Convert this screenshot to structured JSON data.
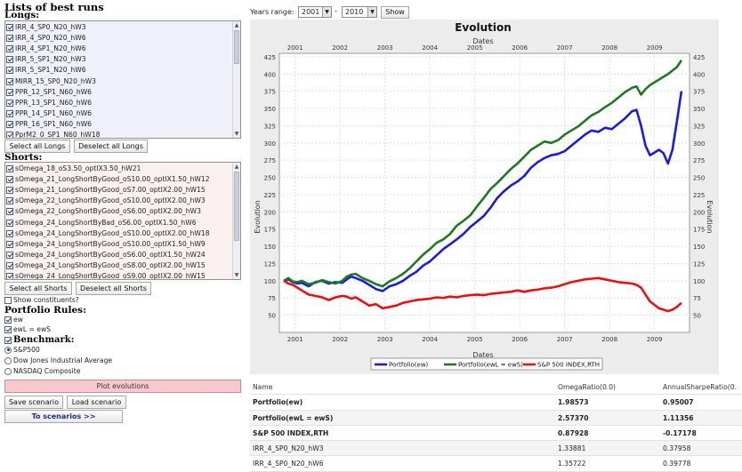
{
  "left": {
    "heading": "Lists of best runs",
    "longs_label": "Longs:",
    "longs": [
      {
        "label": "IRR_4_SP0_N20_hW3",
        "checked": true
      },
      {
        "label": "IRR_4_SP0_N20_hW6",
        "checked": true
      },
      {
        "label": "IRR_4_SP1_N20_hW6",
        "checked": true
      },
      {
        "label": "IRR_5_SP1_N20_hW3",
        "checked": true
      },
      {
        "label": "IRR_5_SP1_N20_hW6",
        "checked": true
      },
      {
        "label": "MIRR_15_SP0_N20_hW3",
        "checked": true
      },
      {
        "label": "PPR_12_SP1_N60_hW6",
        "checked": true
      },
      {
        "label": "PPR_13_SP1_N60_hW6",
        "checked": true
      },
      {
        "label": "PPR_14_SP1_N60_hW6",
        "checked": true
      },
      {
        "label": "PPR_16_SP1_N60_hW6",
        "checked": true
      },
      {
        "label": "PprM2_0_SP1_N60_hW18",
        "checked": true
      }
    ],
    "select_all_longs": "Select all Longs",
    "deselect_all_longs": "Deselect all Longs",
    "shorts_label": "Shorts:",
    "shorts": [
      {
        "label": "sOmega_18_oS3.50_optIX3.50_hW21",
        "checked": true
      },
      {
        "label": "sOmega_21_LongShortByGood_oS10.00_optIX1.50_hW12",
        "checked": true
      },
      {
        "label": "sOmega_21_LongShortByGood_oS7.00_optIX2.00_hW15",
        "checked": true
      },
      {
        "label": "sOmega_22_LongShortByGood_oS10.00_optIX2.00_hW3",
        "checked": true
      },
      {
        "label": "sOmega_22_LongShortByGood_oS6.00_optIX2.00_hW3",
        "checked": true
      },
      {
        "label": "sOmega_24_LongShortByBad_oS6.00_optIX1.50_hW6",
        "checked": true
      },
      {
        "label": "sOmega_24_LongShortByGood_oS10.00_optIX2.00_hW18",
        "checked": true
      },
      {
        "label": "sOmega_24_LongShortByGood_oS10.00_optIX1.50_hW9",
        "checked": true
      },
      {
        "label": "sOmega_24_LongShortByGood_oS6.00_optIX1.50_hW24",
        "checked": true
      },
      {
        "label": "sOmega_24_LongShortByGood_oS8.00_optIX2.00_hW15",
        "checked": true
      },
      {
        "label": "sOmega_24_LongShortByGood_oS9.00_optIX2.00_hW15",
        "checked": true
      }
    ],
    "select_all_shorts": "Select all Shorts",
    "deselect_all_shorts": "Deselect all Shorts",
    "show_constituents": "Show constituents?",
    "portfolio_rules_label": "Portfolio Rules:",
    "rule_ew": "ew",
    "rule_ewl": "ewL = ewS",
    "benchmark_label": "Benchmark:",
    "benchmarks": [
      {
        "label": "S&P500",
        "selected": true
      },
      {
        "label": "Dow Jones Industrial Average",
        "selected": false
      },
      {
        "label": "NASDAQ Composite",
        "selected": false
      }
    ],
    "plot_evolutions": "Plot evolutions",
    "save_scenario": "Save scenario",
    "load_scenario": "Load scenario",
    "to_scenarios": "To scenarios >>"
  },
  "toolbar": {
    "years_range_label": "Years range:",
    "year_from": "2001",
    "dash": "-",
    "year_to": "2010",
    "show_button": "Show"
  },
  "table": {
    "headers": [
      "Name",
      "OmegaRatio(0.0)",
      "AnnualSharpeRatio(0."
    ],
    "rows": [
      {
        "name": "Portfolio(ew)",
        "omega": "1.98573",
        "sharpe": "0.95007",
        "bold": true
      },
      {
        "name": "Portfolio(ewL = ewS)",
        "omega": "2.57370",
        "sharpe": "1.11356",
        "bold": true
      },
      {
        "name": "S&P 500 INDEX,RTH",
        "omega": "0.87928",
        "sharpe": "-0.17178",
        "bold": true
      },
      {
        "name": "IRR_4_SP0_N20_hW3",
        "omega": "1.33881",
        "sharpe": "0.37958",
        "bold": false
      },
      {
        "name": "IRR_4_SP0_N20_hW6",
        "omega": "1.35722",
        "sharpe": "0.39778",
        "bold": false
      }
    ]
  },
  "chart_data": {
    "type": "line",
    "title": "Evolution",
    "top_xlabel": "Dates",
    "xlabel": "Dates",
    "ylabel": "Evolution",
    "ylim": [
      25,
      430
    ],
    "xlim": [
      2000.65,
      2009.78
    ],
    "yticks": [
      50,
      75,
      100,
      125,
      150,
      175,
      200,
      225,
      250,
      275,
      300,
      325,
      350,
      375,
      400,
      425
    ],
    "xticks": [
      "2001",
      "2002",
      "2003",
      "2004",
      "2005",
      "2006",
      "2007",
      "2008",
      "2009"
    ],
    "grid": true,
    "legend_position": "bottom",
    "colors": {
      "ew": "#1a1ae6",
      "ewl": "#1e7a1e",
      "spx": "#e81010",
      "plot_bg": "#ffffff",
      "frame_bg": "#ececec"
    },
    "series": [
      {
        "name": "Portfolio(ew)",
        "color": "#1a1ae6",
        "x": [
          2000.75,
          2000.85,
          2000.95,
          2001.05,
          2001.15,
          2001.3,
          2001.45,
          2001.6,
          2001.75,
          2001.9,
          2002.05,
          2002.15,
          2002.25,
          2002.35,
          2002.5,
          2002.65,
          2002.8,
          2002.95,
          2003.1,
          2003.25,
          2003.4,
          2003.55,
          2003.7,
          2003.85,
          2004.0,
          2004.15,
          2004.3,
          2004.45,
          2004.6,
          2004.75,
          2004.9,
          2005.05,
          2005.2,
          2005.35,
          2005.5,
          2005.65,
          2005.8,
          2005.95,
          2006.1,
          2006.25,
          2006.4,
          2006.55,
          2006.7,
          2006.85,
          2007.0,
          2007.15,
          2007.3,
          2007.45,
          2007.6,
          2007.75,
          2007.9,
          2008.05,
          2008.2,
          2008.35,
          2008.5,
          2008.6,
          2008.7,
          2008.8,
          2008.9,
          2009.0,
          2009.1,
          2009.2,
          2009.3,
          2009.4,
          2009.5,
          2009.6
        ],
        "values": [
          100,
          102,
          98,
          96,
          97,
          92,
          98,
          100,
          96,
          98,
          97,
          102,
          106,
          104,
          100,
          94,
          88,
          85,
          92,
          95,
          100,
          107,
          113,
          122,
          128,
          137,
          146,
          153,
          160,
          168,
          178,
          186,
          194,
          206,
          220,
          230,
          238,
          244,
          252,
          264,
          272,
          278,
          282,
          284,
          288,
          296,
          304,
          312,
          318,
          316,
          322,
          320,
          328,
          336,
          346,
          348,
          325,
          296,
          282,
          286,
          290,
          285,
          270,
          290,
          332,
          375
        ]
      },
      {
        "name": "Portfolio(ewL = ewS)",
        "color": "#1e7a1e",
        "x": [
          2000.75,
          2000.85,
          2000.95,
          2001.05,
          2001.15,
          2001.3,
          2001.45,
          2001.6,
          2001.75,
          2001.9,
          2002.05,
          2002.15,
          2002.25,
          2002.35,
          2002.5,
          2002.65,
          2002.8,
          2002.95,
          2003.1,
          2003.25,
          2003.4,
          2003.55,
          2003.7,
          2003.85,
          2004.0,
          2004.15,
          2004.3,
          2004.45,
          2004.6,
          2004.75,
          2004.9,
          2005.05,
          2005.2,
          2005.35,
          2005.5,
          2005.65,
          2005.8,
          2005.95,
          2006.1,
          2006.25,
          2006.4,
          2006.55,
          2006.7,
          2006.85,
          2007.0,
          2007.15,
          2007.3,
          2007.45,
          2007.6,
          2007.75,
          2007.9,
          2008.05,
          2008.2,
          2008.35,
          2008.5,
          2008.6,
          2008.7,
          2008.8,
          2008.9,
          2009.0,
          2009.1,
          2009.2,
          2009.3,
          2009.4,
          2009.5,
          2009.6
        ],
        "values": [
          100,
          104,
          99,
          98,
          100,
          95,
          97,
          101,
          98,
          96,
          100,
          106,
          109,
          110,
          104,
          100,
          95,
          92,
          99,
          104,
          110,
          118,
          128,
          138,
          146,
          155,
          160,
          168,
          180,
          187,
          195,
          208,
          220,
          233,
          242,
          252,
          262,
          270,
          280,
          290,
          296,
          302,
          300,
          304,
          312,
          318,
          324,
          332,
          340,
          345,
          352,
          358,
          366,
          374,
          380,
          382,
          370,
          378,
          384,
          388,
          392,
          396,
          400,
          405,
          410,
          420
        ]
      },
      {
        "name": "S&P 500 INDEX,RTH",
        "color": "#e81010",
        "x": [
          2000.75,
          2000.85,
          2000.95,
          2001.05,
          2001.15,
          2001.3,
          2001.45,
          2001.6,
          2001.75,
          2001.9,
          2002.05,
          2002.15,
          2002.25,
          2002.35,
          2002.5,
          2002.65,
          2002.8,
          2002.95,
          2003.1,
          2003.25,
          2003.4,
          2003.55,
          2003.7,
          2003.85,
          2004.0,
          2004.15,
          2004.3,
          2004.45,
          2004.6,
          2004.75,
          2004.9,
          2005.05,
          2005.2,
          2005.35,
          2005.5,
          2005.65,
          2005.8,
          2005.95,
          2006.1,
          2006.25,
          2006.4,
          2006.55,
          2006.7,
          2006.85,
          2007.0,
          2007.15,
          2007.3,
          2007.45,
          2007.6,
          2007.75,
          2007.9,
          2008.05,
          2008.2,
          2008.35,
          2008.5,
          2008.6,
          2008.7,
          2008.8,
          2008.9,
          2009.0,
          2009.1,
          2009.2,
          2009.3,
          2009.4,
          2009.5,
          2009.6
        ],
        "values": [
          100,
          96,
          94,
          90,
          86,
          80,
          78,
          76,
          72,
          76,
          78,
          77,
          74,
          76,
          70,
          64,
          66,
          60,
          62,
          64,
          68,
          70,
          72,
          73,
          74,
          76,
          75,
          77,
          76,
          78,
          79,
          80,
          79,
          81,
          82,
          83,
          84,
          86,
          84,
          86,
          87,
          89,
          90,
          92,
          95,
          98,
          100,
          102,
          103,
          104,
          102,
          100,
          98,
          97,
          96,
          94,
          90,
          80,
          70,
          65,
          60,
          58,
          56,
          58,
          62,
          68
        ]
      }
    ]
  }
}
